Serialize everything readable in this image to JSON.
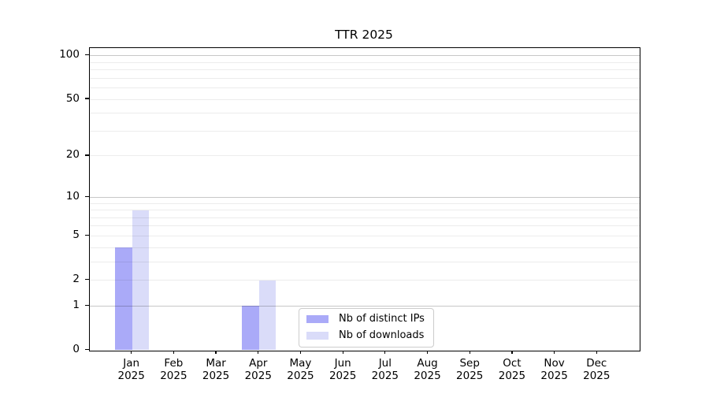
{
  "chart_data": {
    "type": "bar",
    "title": "TTR 2025",
    "categories": [
      "Jan",
      "Feb",
      "Mar",
      "Apr",
      "May",
      "Jun",
      "Jul",
      "Aug",
      "Sep",
      "Oct",
      "Nov",
      "Dec"
    ],
    "category_year": "2025",
    "series": [
      {
        "name": "Nb of distinct IPs",
        "color": "#aaaaf8",
        "values": [
          4,
          0,
          0,
          1,
          0,
          0,
          0,
          0,
          0,
          0,
          0,
          0
        ]
      },
      {
        "name": "Nb of downloads",
        "color": "#dadcf9",
        "values": [
          8,
          0,
          0,
          2,
          0,
          0,
          0,
          0,
          0,
          0,
          0,
          0
        ]
      }
    ],
    "xlabel": "",
    "ylabel": "",
    "yscale": "log1p",
    "ylim": [
      0,
      113
    ],
    "y_ticks": [
      0,
      1,
      2,
      5,
      10,
      20,
      50,
      100
    ],
    "y_major_gridlines": [
      1,
      10,
      100
    ],
    "y_minor_gridlines": [
      2,
      3,
      4,
      5,
      6,
      7,
      8,
      9,
      20,
      30,
      40,
      50,
      60,
      70,
      80,
      90
    ],
    "grid": true,
    "legend_position": "lower center, inside plot"
  },
  "colors": {
    "bar_distinct_ips": "#aaaaf8",
    "bar_downloads": "#dadcf9",
    "axis_spine": "#000000",
    "grid_major": "rgba(0,0,0,0.22)",
    "grid_minor": "rgba(0,0,0,0.075)",
    "legend_border": "#cccccc",
    "background": "#ffffff"
  }
}
